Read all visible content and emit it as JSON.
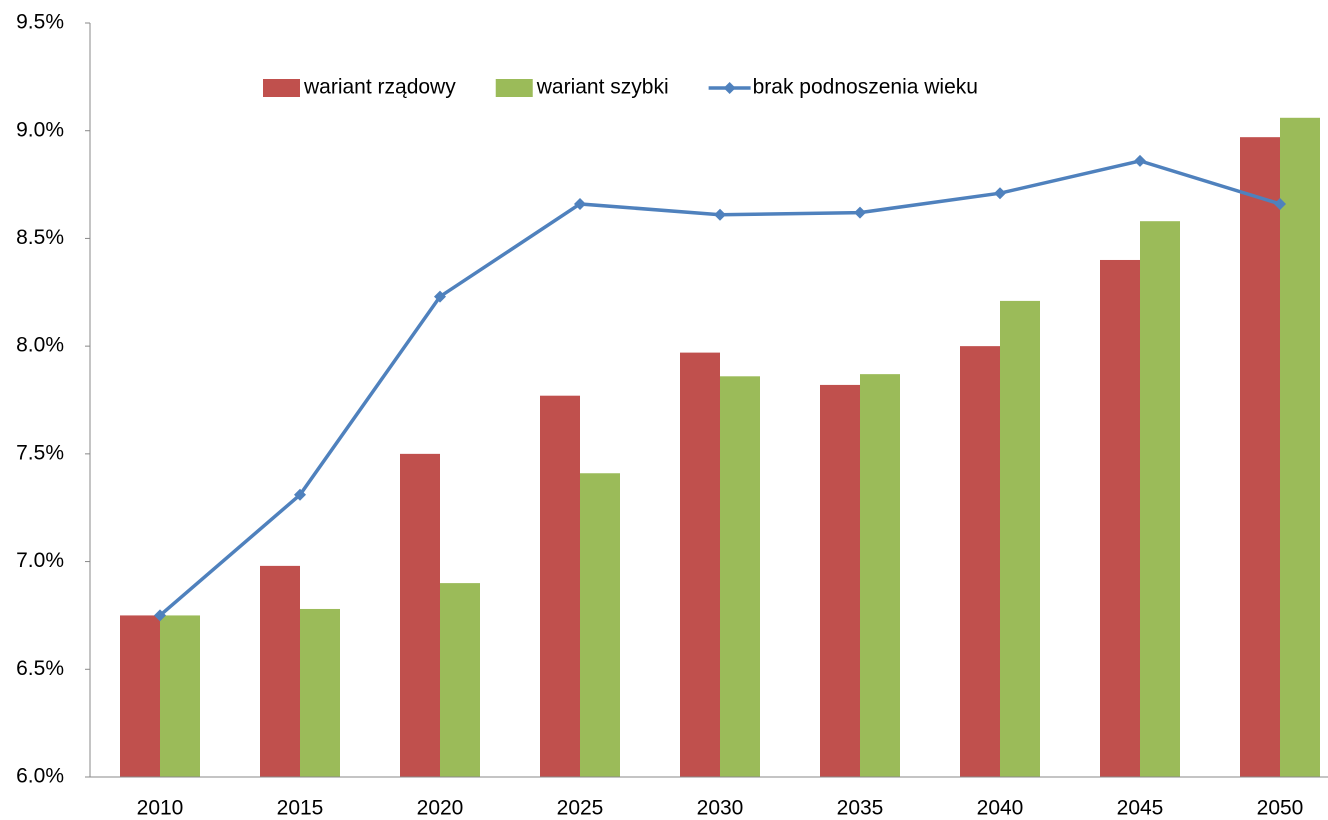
{
  "chart_data": {
    "type": "bar_line",
    "categories": [
      "2010",
      "2015",
      "2020",
      "2025",
      "2030",
      "2035",
      "2040",
      "2045",
      "2050"
    ],
    "series": [
      {
        "name": "wariant rządowy",
        "type": "bar",
        "color": "#c0504d",
        "values": [
          6.75,
          6.98,
          7.5,
          7.77,
          7.97,
          7.82,
          8.0,
          8.4,
          8.97
        ]
      },
      {
        "name": "wariant szybki",
        "type": "bar",
        "color": "#9bbb59",
        "values": [
          6.75,
          6.78,
          6.9,
          7.41,
          7.86,
          7.87,
          8.21,
          8.58,
          9.06
        ]
      },
      {
        "name": "brak podnoszenia wieku",
        "type": "line",
        "color": "#4f81bd",
        "values": [
          6.75,
          7.31,
          8.23,
          8.66,
          8.61,
          8.62,
          8.71,
          8.86,
          8.66
        ]
      }
    ],
    "ylim": [
      6.0,
      9.5
    ],
    "yticks": [
      {
        "value": 6.0,
        "label": "6.0%"
      },
      {
        "value": 6.5,
        "label": "6.5%"
      },
      {
        "value": 7.0,
        "label": "7.0%"
      },
      {
        "value": 7.5,
        "label": "7.5%"
      },
      {
        "value": 8.0,
        "label": "8.0%"
      },
      {
        "value": 8.5,
        "label": "8.5%"
      },
      {
        "value": 9.0,
        "label": "9.0%"
      },
      {
        "value": 9.5,
        "label": "9.5%"
      }
    ],
    "grid": false,
    "legend": "top"
  }
}
